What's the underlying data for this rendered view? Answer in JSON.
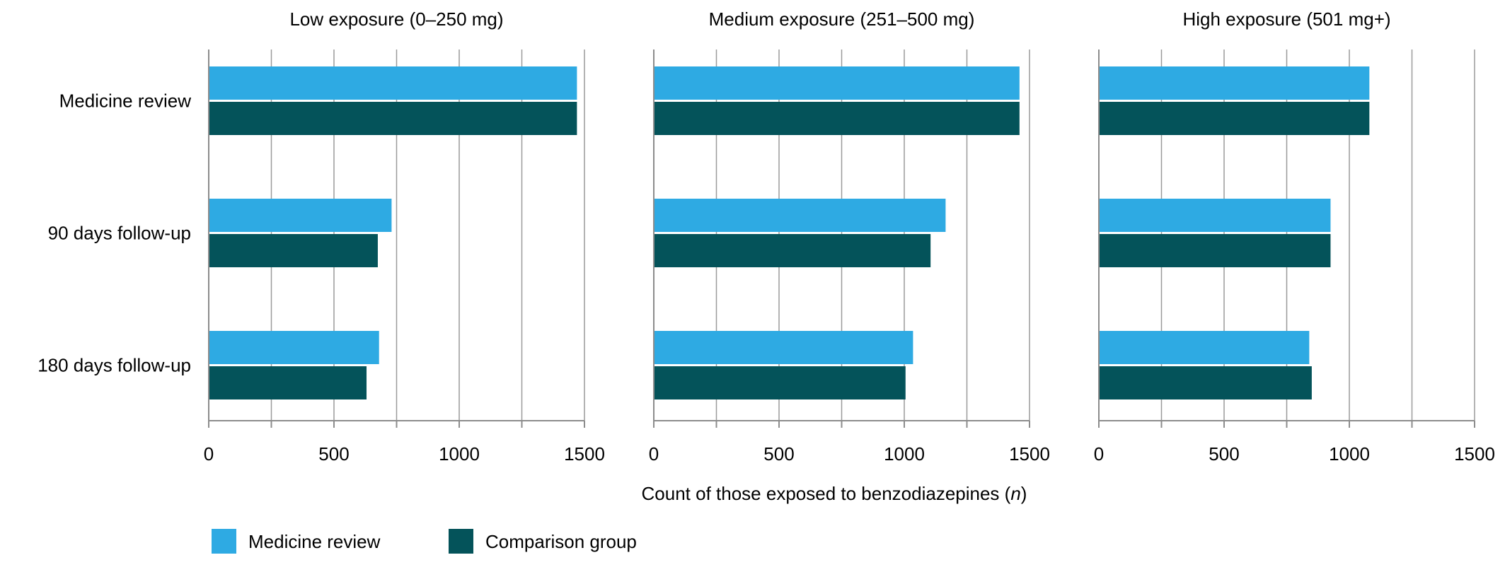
{
  "chart_data": {
    "type": "bar",
    "orientation": "horizontal",
    "categories": [
      "Medicine review",
      "90 days follow-up",
      "180 days follow-up"
    ],
    "xlim": [
      0,
      1500
    ],
    "xticks": [
      0,
      500,
      1000,
      1500
    ],
    "grid_step": 250,
    "xlabel_prefix": "Count of those exposed to benzodiazepines (",
    "xlabel_var": "n",
    "xlabel_suffix": ")",
    "colors": {
      "Medicine review": "#2eaae3",
      "Comparison group": "#04535a"
    },
    "legend": [
      "Medicine review",
      "Comparison group"
    ],
    "panels": [
      {
        "title": "Low exposure (0–250 mg)",
        "series": [
          {
            "name": "Medicine review",
            "values": [
              1470,
              730,
              680
            ]
          },
          {
            "name": "Comparison group",
            "values": [
              1470,
              675,
              630
            ]
          }
        ]
      },
      {
        "title": "Medium exposure (251–500 mg)",
        "series": [
          {
            "name": "Medicine review",
            "values": [
              1460,
              1165,
              1035
            ]
          },
          {
            "name": "Comparison group",
            "values": [
              1460,
              1105,
              1005
            ]
          }
        ]
      },
      {
        "title": "High exposure (501 mg+)",
        "series": [
          {
            "name": "Medicine review",
            "values": [
              1080,
              925,
              840
            ]
          },
          {
            "name": "Comparison group",
            "values": [
              1080,
              925,
              850
            ]
          }
        ]
      }
    ]
  }
}
